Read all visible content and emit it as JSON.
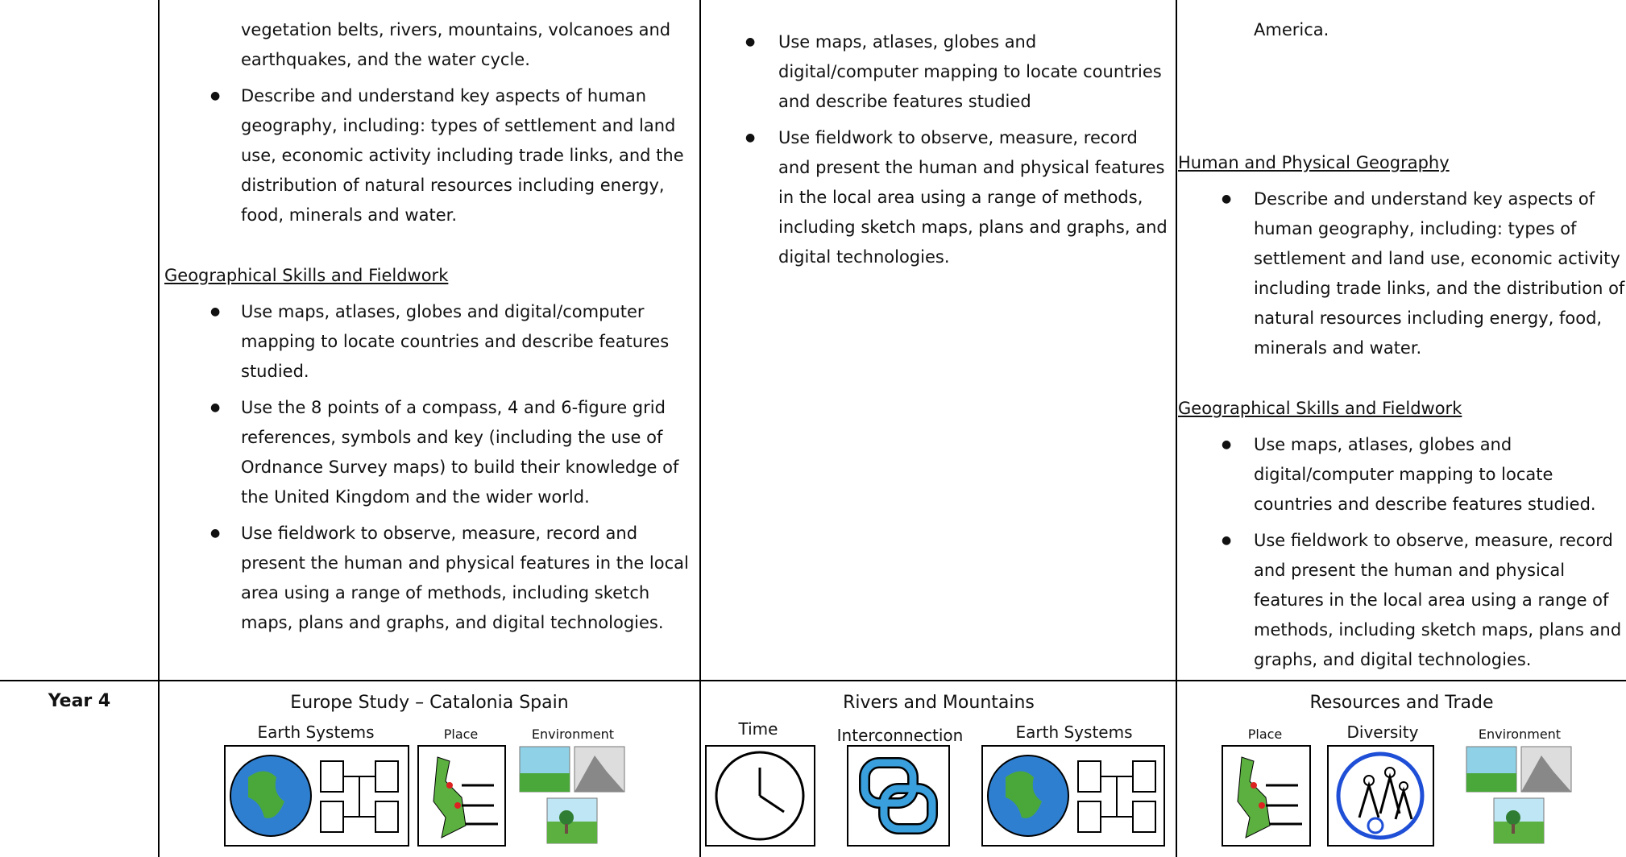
{
  "top_row": {
    "cells": [
      {
        "blocks": [
          {
            "text": "vegetation belts, rivers, mountains, volcanoes and earthquakes, and the water cycle."
          },
          {
            "bullets": [
              "Describe and understand key aspects of human geography, including: types of settlement and land use, economic activity including trade links, and the distribution of natural resources including energy, food, minerals and water."
            ]
          },
          {
            "heading": "Geographical Skills and Fieldwork",
            "bullets": [
              "Use maps, atlases, globes and digital/computer mapping to locate countries and describe features studied.",
              "Use the 8 points of a compass, 4 and 6-figure grid references, symbols and key (including the use of Ordnance Survey maps) to build their knowledge of the United Kingdom and the wider world.",
              "Use fieldwork to observe, measure, record and present the human and physical features in the local area using a range of methods, including sketch maps, plans and graphs, and digital technologies."
            ]
          }
        ]
      },
      {
        "blocks": [
          {
            "bullets": [
              "Use maps, atlases, globes and digital/computer mapping to locate countries and describe features studied",
              "Use fieldwork to observe, measure, record and present the human and physical features in the local area using a range of methods, including sketch maps, plans and graphs, and digital technologies."
            ]
          }
        ]
      },
      {
        "blocks": [
          {
            "text": "America."
          },
          {
            "heading": "Human and Physical Geography",
            "bullets": [
              "Describe and understand key aspects of human geography, including: types of settlement and land use, economic activity including trade links, and the distribution of natural resources including energy, food, minerals and water."
            ]
          },
          {
            "heading": "Geographical Skills and Fieldwork",
            "bullets": [
              "Use maps, atlases, globes and digital/computer mapping to locate countries and describe features studied.",
              "Use fieldwork to observe, measure, record and present the human and physical features in the local area using a range of methods, including sketch maps, plans and graphs, and digital technologies."
            ]
          }
        ]
      }
    ]
  },
  "year_row": {
    "label": "Year 4",
    "cells": [
      {
        "title": "Europe Study – Catalonia Spain",
        "icons": [
          "Earth Systems",
          "Place",
          "Environment"
        ]
      },
      {
        "title": "Rivers and Mountains",
        "icons": [
          "Time",
          "Interconnection",
          "Earth Systems"
        ]
      },
      {
        "title": "Resources and Trade",
        "icons": [
          "Place",
          "Diversity",
          "Environment"
        ]
      }
    ]
  }
}
